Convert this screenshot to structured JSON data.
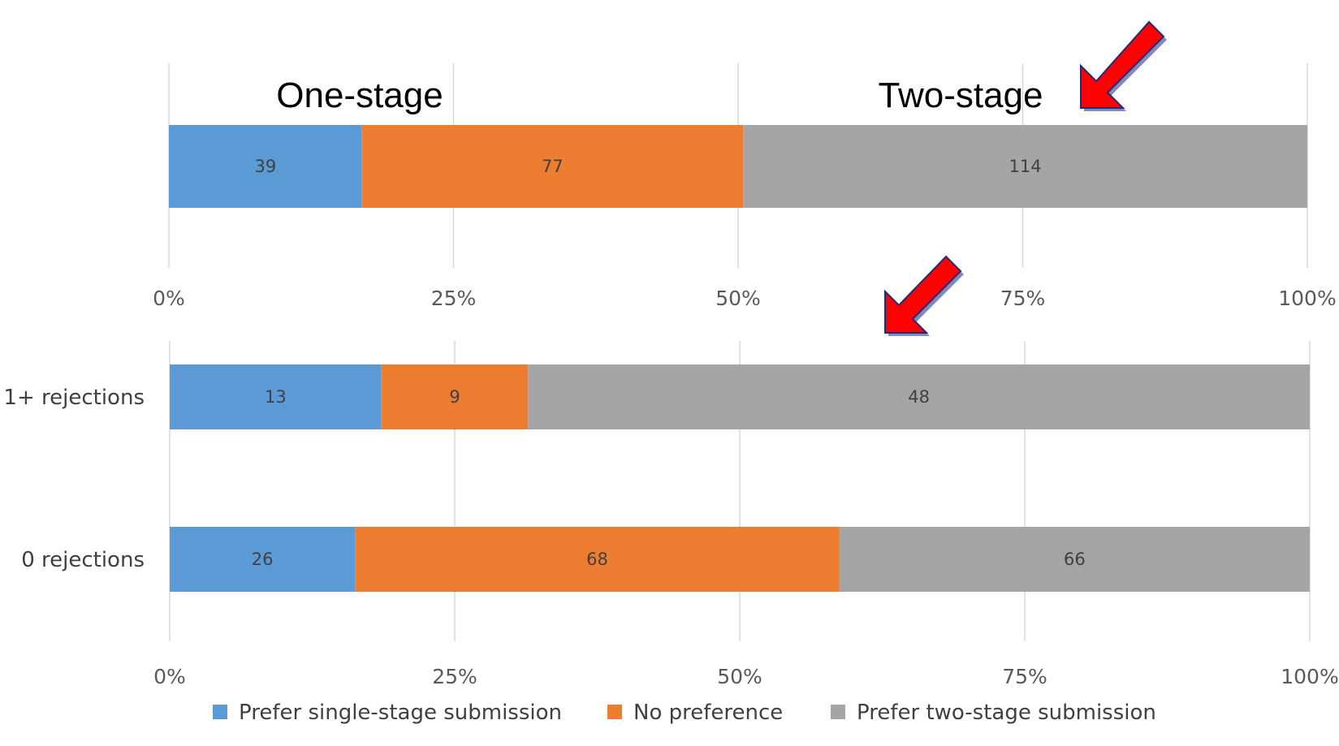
{
  "annotations": {
    "one_stage": "One-stage",
    "two_stage": "Two-stage"
  },
  "colors": {
    "single": "#5B9BD5",
    "none": "#ED7D31",
    "two": "#A5A5A5",
    "arrow": "#FF0000",
    "arrow_outline": "#1F2A7A"
  },
  "chart_data": [
    {
      "type": "bar",
      "stacked": "percent",
      "orientation": "horizontal",
      "categories": [
        ""
      ],
      "series": [
        {
          "name": "Prefer single-stage submission",
          "values": [
            39
          ]
        },
        {
          "name": "No preference",
          "values": [
            77
          ]
        },
        {
          "name": "Prefer two-stage submission",
          "values": [
            114
          ]
        }
      ],
      "xticks": [
        "0%",
        "25%",
        "50%",
        "75%",
        "100%"
      ],
      "xlim": [
        0,
        100
      ],
      "grid": "vertical"
    },
    {
      "type": "bar",
      "stacked": "percent",
      "orientation": "horizontal",
      "categories": [
        "1+ rejections",
        "0 rejections"
      ],
      "series": [
        {
          "name": "Prefer single-stage submission",
          "values": [
            13,
            26
          ]
        },
        {
          "name": "No preference",
          "values": [
            9,
            68
          ]
        },
        {
          "name": "Prefer two-stage submission",
          "values": [
            48,
            66
          ]
        }
      ],
      "xticks": [
        "0%",
        "25%",
        "50%",
        "75%",
        "100%"
      ],
      "xlim": [
        0,
        100
      ],
      "grid": "vertical",
      "legend": "bottom"
    }
  ]
}
